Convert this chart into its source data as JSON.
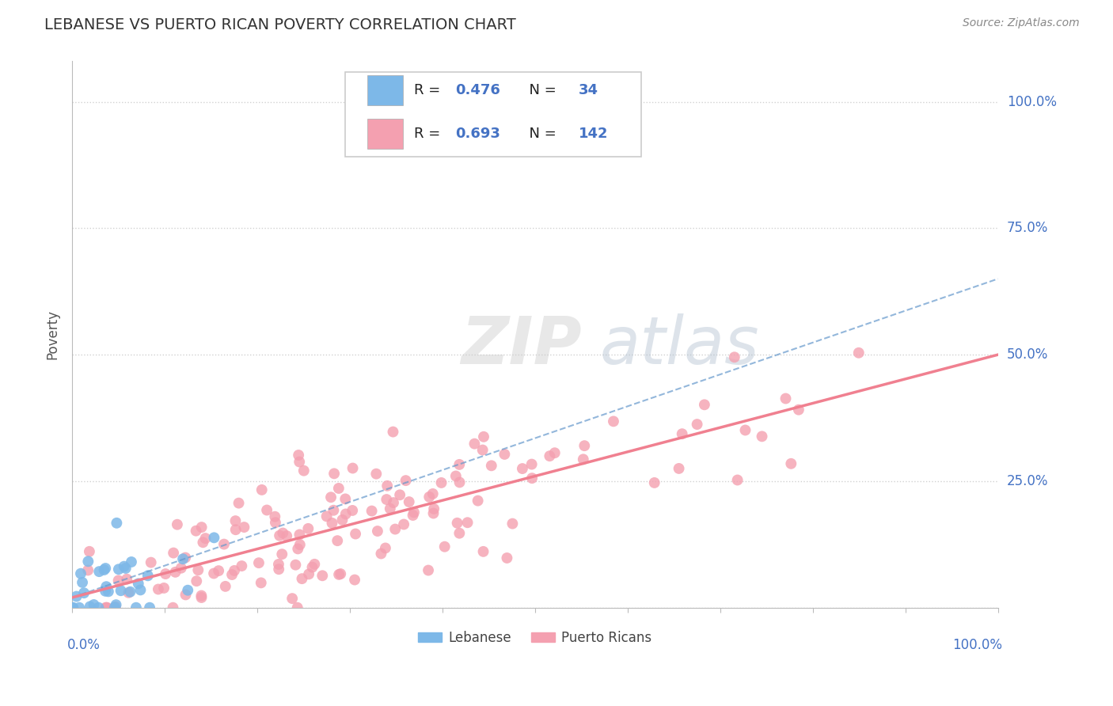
{
  "title": "LEBANESE VS PUERTO RICAN POVERTY CORRELATION CHART",
  "source": "Source: ZipAtlas.com",
  "ylabel": "Poverty",
  "ylabel_right_labels": [
    "100.0%",
    "75.0%",
    "50.0%",
    "25.0%"
  ],
  "ylabel_right_positions": [
    1.0,
    0.75,
    0.5,
    0.25
  ],
  "legend_label_bottom_blue": "Lebanese",
  "legend_label_bottom_pink": "Puerto Ricans",
  "blue_color": "#7db8e8",
  "pink_color": "#f4a0b0",
  "blue_line_color": "#6699cc",
  "pink_line_color": "#f08090",
  "R_blue": 0.476,
  "N_blue": 34,
  "R_pink": 0.693,
  "N_pink": 142,
  "watermark": "ZIPAtlas",
  "background_color": "#ffffff",
  "grid_color": "#cccccc",
  "title_color": "#333333",
  "label_color": "#4472c4"
}
